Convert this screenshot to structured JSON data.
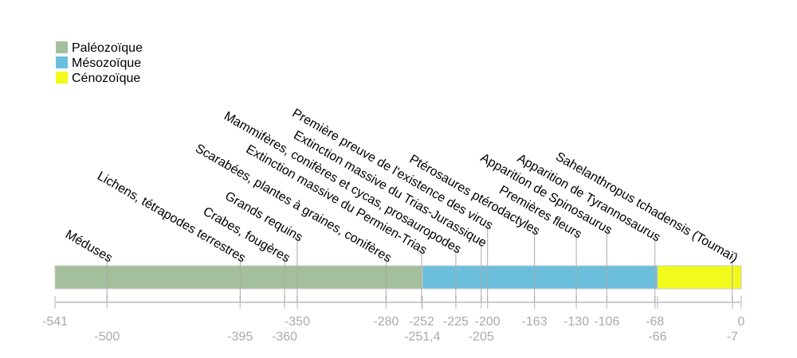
{
  "chart_data": {
    "type": "timeline",
    "xlim": [
      -541,
      0
    ],
    "legend_placement": "top-left",
    "eras": [
      {
        "name": "Paléozoïque",
        "start": -541,
        "end": -251.4,
        "color": "#a3bf9b"
      },
      {
        "name": "Mésozoïque",
        "start": -251.4,
        "end": -66,
        "color": "#6bbfdc"
      },
      {
        "name": "Cénozoïque",
        "start": -66,
        "end": 0,
        "color": "#f2fa1c"
      }
    ],
    "events": [
      {
        "label": "Méduses",
        "x": -500
      },
      {
        "label": "Lichens, tétrapodes terrestres",
        "x": -395
      },
      {
        "label": "Crabes, fougères",
        "x": -360
      },
      {
        "label": "Grands requins",
        "x": -350
      },
      {
        "label": "Scarabées, plantes à graines, conifères",
        "x": -280
      },
      {
        "label": "Extinction massive du Permien-Trias",
        "x": -252
      },
      {
        "label": "Mammifères, conifères et cycas, prosauropodes",
        "x": -225
      },
      {
        "label": "Extinction massive du Trias-Jurassique",
        "x": -205
      },
      {
        "label": "Première preuve de l'existence des virus",
        "x": -200
      },
      {
        "label": "Ptérosaures ptérodactyles",
        "x": -163
      },
      {
        "label": "Premières fleurs",
        "x": -130
      },
      {
        "label": "Apparition de Spinosaurus",
        "x": -106
      },
      {
        "label": "Apparition de Tyrannosaurus",
        "x": -68
      },
      {
        "label": "Sahelanthropus tchadensis (Toumaï)",
        "x": -7
      }
    ],
    "ticks": [
      {
        "label": "-541",
        "x": -541,
        "row": 1
      },
      {
        "label": "-500",
        "x": -500,
        "row": 2
      },
      {
        "label": "-395",
        "x": -395,
        "row": 2
      },
      {
        "label": "-360",
        "x": -360,
        "row": 2
      },
      {
        "label": "-350",
        "x": -350,
        "row": 1
      },
      {
        "label": "-280",
        "x": -280,
        "row": 1
      },
      {
        "label": "-252",
        "x": -252,
        "row": 1
      },
      {
        "label": "-251,4",
        "x": -251.4,
        "row": 2
      },
      {
        "label": "-225",
        "x": -225,
        "row": 1
      },
      {
        "label": "-205",
        "x": -205,
        "row": 2
      },
      {
        "label": "-200",
        "x": -200,
        "row": 1
      },
      {
        "label": "-163",
        "x": -163,
        "row": 1
      },
      {
        "label": "-130",
        "x": -130,
        "row": 1
      },
      {
        "label": "-106",
        "x": -106,
        "row": 1
      },
      {
        "label": "-68",
        "x": -68,
        "row": 1
      },
      {
        "label": "-66",
        "x": -66,
        "row": 2
      },
      {
        "label": "-7",
        "x": -7,
        "row": 2
      },
      {
        "label": "0",
        "x": 0,
        "row": 1
      }
    ]
  }
}
